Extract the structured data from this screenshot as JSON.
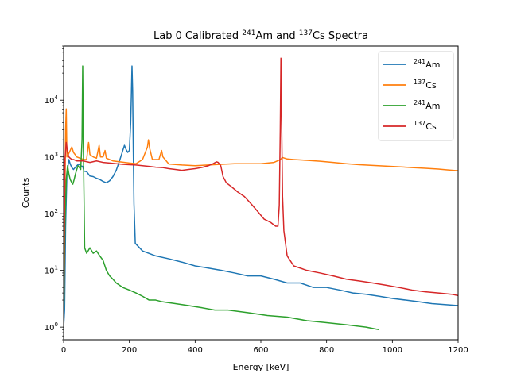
{
  "chart_data": {
    "type": "line",
    "title": {
      "prefix": "Lab 0 Calibrated ",
      "sup1": "241",
      "mid": "Am and ",
      "sup2": "137",
      "suffix": "Cs Spectra"
    },
    "xlabel": "Energy [keV]",
    "ylabel": "Counts",
    "xlim": [
      0,
      1200
    ],
    "ylim": [
      0.6,
      90000
    ],
    "yscale": "log",
    "grid": false,
    "legend_position": "top-right",
    "xticks": [
      {
        "value": 0,
        "label": "0"
      },
      {
        "value": 200,
        "label": "200"
      },
      {
        "value": 400,
        "label": "400"
      },
      {
        "value": 600,
        "label": "600"
      },
      {
        "value": 800,
        "label": "800"
      },
      {
        "value": 1000,
        "label": "1000"
      },
      {
        "value": 1200,
        "label": "1200"
      }
    ],
    "yticks": [
      {
        "value": 1,
        "base": "10",
        "exp": "0"
      },
      {
        "value": 10,
        "base": "10",
        "exp": "1"
      },
      {
        "value": 100,
        "base": "10",
        "exp": "2"
      },
      {
        "value": 1000,
        "base": "10",
        "exp": "3"
      },
      {
        "value": 10000,
        "base": "10",
        "exp": "4"
      }
    ],
    "series": [
      {
        "name_sup": "241",
        "name_base": "Am",
        "color": "#1f77b4",
        "points": [
          [
            0,
            1
          ],
          [
            3,
            2
          ],
          [
            6,
            60
          ],
          [
            10,
            500
          ],
          [
            16,
            900
          ],
          [
            20,
            750
          ],
          [
            25,
            650
          ],
          [
            30,
            600
          ],
          [
            35,
            650
          ],
          [
            40,
            700
          ],
          [
            46,
            750
          ],
          [
            52,
            700
          ],
          [
            58,
            680
          ],
          [
            62,
            560
          ],
          [
            70,
            550
          ],
          [
            80,
            460
          ],
          [
            90,
            450
          ],
          [
            100,
            420
          ],
          [
            110,
            400
          ],
          [
            120,
            370
          ],
          [
            130,
            350
          ],
          [
            140,
            380
          ],
          [
            150,
            450
          ],
          [
            160,
            580
          ],
          [
            170,
            850
          ],
          [
            180,
            1300
          ],
          [
            185,
            1600
          ],
          [
            190,
            1350
          ],
          [
            195,
            1200
          ],
          [
            200,
            1300
          ],
          [
            204,
            4000
          ],
          [
            206,
            12000
          ],
          [
            208,
            40000
          ],
          [
            210,
            14000
          ],
          [
            212,
            1200
          ],
          [
            214,
            150
          ],
          [
            218,
            30
          ],
          [
            240,
            22
          ],
          [
            280,
            18
          ],
          [
            320,
            16
          ],
          [
            360,
            14
          ],
          [
            400,
            12
          ],
          [
            440,
            11
          ],
          [
            480,
            10
          ],
          [
            520,
            9
          ],
          [
            560,
            8
          ],
          [
            600,
            8
          ],
          [
            640,
            7
          ],
          [
            680,
            6
          ],
          [
            720,
            6
          ],
          [
            760,
            5
          ],
          [
            800,
            5
          ],
          [
            840,
            4.5
          ],
          [
            880,
            4
          ],
          [
            920,
            3.8
          ],
          [
            960,
            3.5
          ],
          [
            1000,
            3.2
          ],
          [
            1040,
            3
          ],
          [
            1080,
            2.8
          ],
          [
            1120,
            2.6
          ],
          [
            1160,
            2.5
          ],
          [
            1200,
            2.4
          ]
        ]
      },
      {
        "name_sup": "137",
        "name_base": "Cs",
        "color": "#ff7f0e",
        "points": [
          [
            0,
            1
          ],
          [
            6,
            3000
          ],
          [
            8,
            7000
          ],
          [
            10,
            1000
          ],
          [
            14,
            1100
          ],
          [
            20,
            1300
          ],
          [
            25,
            1500
          ],
          [
            30,
            1200
          ],
          [
            35,
            1100
          ],
          [
            40,
            1000
          ],
          [
            50,
            950
          ],
          [
            60,
            900
          ],
          [
            70,
            900
          ],
          [
            76,
            1800
          ],
          [
            80,
            1100
          ],
          [
            90,
            1000
          ],
          [
            100,
            950
          ],
          [
            108,
            1600
          ],
          [
            112,
            1000
          ],
          [
            120,
            1000
          ],
          [
            126,
            1300
          ],
          [
            130,
            950
          ],
          [
            150,
            850
          ],
          [
            200,
            780
          ],
          [
            220,
            760
          ],
          [
            240,
            900
          ],
          [
            255,
            1500
          ],
          [
            258,
            2000
          ],
          [
            262,
            1400
          ],
          [
            270,
            900
          ],
          [
            290,
            900
          ],
          [
            298,
            1300
          ],
          [
            302,
            1000
          ],
          [
            320,
            750
          ],
          [
            360,
            720
          ],
          [
            400,
            700
          ],
          [
            440,
            720
          ],
          [
            480,
            740
          ],
          [
            520,
            760
          ],
          [
            560,
            760
          ],
          [
            600,
            760
          ],
          [
            640,
            800
          ],
          [
            660,
            900
          ],
          [
            665,
            980
          ],
          [
            680,
            920
          ],
          [
            700,
            900
          ],
          [
            740,
            870
          ],
          [
            780,
            840
          ],
          [
            820,
            800
          ],
          [
            860,
            760
          ],
          [
            900,
            730
          ],
          [
            940,
            710
          ],
          [
            980,
            690
          ],
          [
            1020,
            670
          ],
          [
            1060,
            650
          ],
          [
            1100,
            630
          ],
          [
            1140,
            610
          ],
          [
            1170,
            590
          ],
          [
            1200,
            570
          ]
        ]
      },
      {
        "name_sup": "241",
        "name_base": "Am",
        "color": "#2ca02c",
        "points": [
          [
            0,
            1
          ],
          [
            4,
            60
          ],
          [
            8,
            400
          ],
          [
            12,
            700
          ],
          [
            16,
            500
          ],
          [
            20,
            400
          ],
          [
            24,
            360
          ],
          [
            28,
            330
          ],
          [
            32,
            400
          ],
          [
            36,
            500
          ],
          [
            40,
            600
          ],
          [
            44,
            700
          ],
          [
            48,
            650
          ],
          [
            52,
            600
          ],
          [
            56,
            2000
          ],
          [
            58,
            40000
          ],
          [
            60,
            1500
          ],
          [
            62,
            200
          ],
          [
            64,
            25
          ],
          [
            70,
            20
          ],
          [
            80,
            25
          ],
          [
            90,
            20
          ],
          [
            100,
            22
          ],
          [
            110,
            18
          ],
          [
            120,
            15
          ],
          [
            130,
            10
          ],
          [
            140,
            8
          ],
          [
            150,
            7
          ],
          [
            160,
            6
          ],
          [
            180,
            5
          ],
          [
            200,
            4.5
          ],
          [
            220,
            4
          ],
          [
            240,
            3.5
          ],
          [
            260,
            3
          ],
          [
            280,
            3
          ],
          [
            300,
            2.8
          ],
          [
            340,
            2.6
          ],
          [
            380,
            2.4
          ],
          [
            420,
            2.2
          ],
          [
            460,
            2
          ],
          [
            500,
            2
          ],
          [
            560,
            1.8
          ],
          [
            620,
            1.6
          ],
          [
            680,
            1.5
          ],
          [
            740,
            1.3
          ],
          [
            800,
            1.2
          ],
          [
            860,
            1.1
          ],
          [
            920,
            1
          ],
          [
            960,
            0.9
          ]
        ]
      },
      {
        "name_sup": "137",
        "name_base": "Cs",
        "color": "#d62728",
        "points": [
          [
            0,
            1
          ],
          [
            4,
            900
          ],
          [
            8,
            1800
          ],
          [
            12,
            1200
          ],
          [
            16,
            1000
          ],
          [
            20,
            950
          ],
          [
            25,
            900
          ],
          [
            30,
            900
          ],
          [
            40,
            850
          ],
          [
            60,
            850
          ],
          [
            80,
            800
          ],
          [
            100,
            850
          ],
          [
            120,
            800
          ],
          [
            140,
            780
          ],
          [
            160,
            760
          ],
          [
            180,
            740
          ],
          [
            200,
            730
          ],
          [
            220,
            720
          ],
          [
            240,
            700
          ],
          [
            260,
            680
          ],
          [
            280,
            660
          ],
          [
            300,
            650
          ],
          [
            320,
            620
          ],
          [
            340,
            600
          ],
          [
            360,
            580
          ],
          [
            380,
            600
          ],
          [
            400,
            620
          ],
          [
            420,
            650
          ],
          [
            440,
            700
          ],
          [
            455,
            760
          ],
          [
            465,
            820
          ],
          [
            470,
            800
          ],
          [
            478,
            700
          ],
          [
            485,
            450
          ],
          [
            495,
            350
          ],
          [
            510,
            300
          ],
          [
            530,
            240
          ],
          [
            550,
            200
          ],
          [
            570,
            150
          ],
          [
            590,
            110
          ],
          [
            610,
            80
          ],
          [
            630,
            70
          ],
          [
            645,
            60
          ],
          [
            652,
            60
          ],
          [
            656,
            140
          ],
          [
            659,
            3000
          ],
          [
            661,
            55000
          ],
          [
            663,
            5000
          ],
          [
            666,
            200
          ],
          [
            670,
            50
          ],
          [
            680,
            18
          ],
          [
            700,
            12
          ],
          [
            740,
            10
          ],
          [
            780,
            9
          ],
          [
            820,
            8
          ],
          [
            860,
            7
          ],
          [
            900,
            6.5
          ],
          [
            940,
            6
          ],
          [
            980,
            5.5
          ],
          [
            1020,
            5
          ],
          [
            1060,
            4.5
          ],
          [
            1100,
            4.2
          ],
          [
            1140,
            4
          ],
          [
            1180,
            3.8
          ],
          [
            1200,
            3.6
          ]
        ]
      }
    ]
  }
}
